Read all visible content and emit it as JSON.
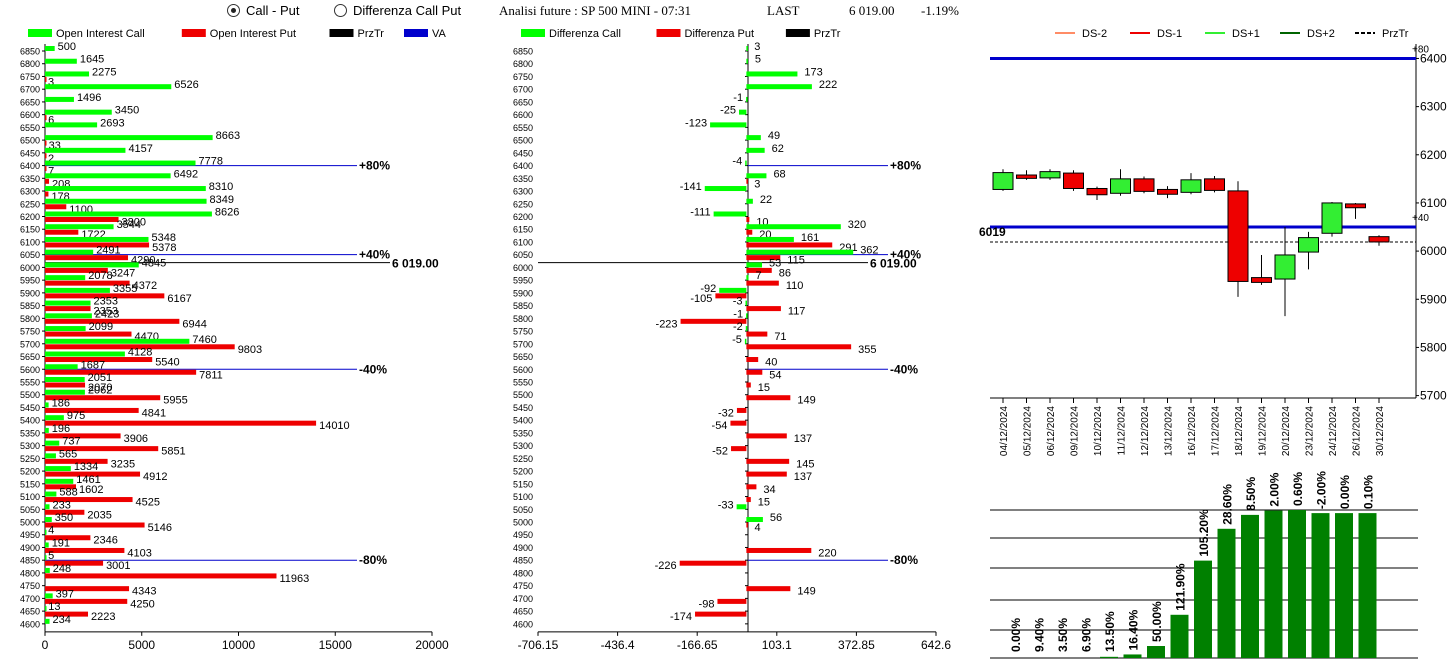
{
  "header": {
    "radio_call_put": "Call - Put",
    "radio_diff": "Differenza Call Put",
    "title": "Analisi future : SP 500 MINI - 07:31",
    "last_label": "LAST",
    "last_value": "6 019.00",
    "change": "-1.19%"
  },
  "chart_data": [
    {
      "type": "bar",
      "id": "open-interest",
      "legend": [
        "Open Interest Call",
        "Open Interest Put",
        "PrzTr",
        "VA"
      ],
      "colors": {
        "call": "#00ff00",
        "put": "#ee0000",
        "przTr": "#000000",
        "va": "#0000cc"
      },
      "categories": [
        6850,
        6800,
        6750,
        6700,
        6650,
        6600,
        6550,
        6500,
        6450,
        6400,
        6350,
        6300,
        6250,
        6200,
        6150,
        6100,
        6050,
        6000,
        5950,
        5900,
        5850,
        5800,
        5750,
        5700,
        5650,
        5600,
        5550,
        5500,
        5450,
        5400,
        5350,
        5300,
        5250,
        5200,
        5150,
        5100,
        5050,
        5000,
        4950,
        4900,
        4850,
        4800,
        4750,
        4700,
        4650,
        4600
      ],
      "series": [
        {
          "name": "Open Interest Call",
          "values": [
            500,
            1645,
            2275,
            6526,
            1496,
            3450,
            2693,
            8663,
            4157,
            7778,
            6492,
            8310,
            8349,
            8626,
            3544,
            5348,
            2491,
            4845,
            2078,
            3355,
            2353,
            2423,
            2099,
            7460,
            4128,
            1687,
            2051,
            2062,
            186,
            975,
            196,
            737,
            565,
            1334,
            1461,
            588,
            233,
            350,
            4,
            191,
            5,
            248,
            0,
            397,
            13,
            234
          ]
        },
        {
          "name": "Open Interest Put",
          "values": [
            0,
            0,
            3,
            0,
            0,
            6,
            0,
            33,
            2,
            7,
            208,
            178,
            1100,
            3800,
            1722,
            5378,
            4290,
            3247,
            4372,
            6167,
            2353,
            6944,
            4470,
            9803,
            5540,
            7811,
            2070,
            5955,
            4841,
            14010,
            3906,
            5851,
            3235,
            4912,
            1602,
            4525,
            2035,
            5146,
            2346,
            4103,
            3001,
            11963,
            4343,
            4250,
            2223,
            0
          ]
        }
      ],
      "xlim": [
        0,
        20000
      ],
      "xticks": [
        "0",
        "5000",
        "10000",
        "15000",
        "20000"
      ],
      "prztr": {
        "strike": 6019,
        "label": "6 019.00"
      },
      "va_lines": [
        {
          "strike": 6400,
          "label": "+80%"
        },
        {
          "strike": 6050,
          "label": "+40%"
        },
        {
          "strike": 5600,
          "label": "-40%"
        },
        {
          "strike": 4850,
          "label": "-80%"
        }
      ]
    },
    {
      "type": "bar",
      "id": "differenza",
      "legend": [
        "Differenza Call",
        "Differenza Put",
        "PrzTr"
      ],
      "colors": {
        "call": "#00ff00",
        "put": "#ee0000",
        "przTr": "#000000",
        "va": "#0000cc"
      },
      "categories": [
        6850,
        6800,
        6750,
        6700,
        6650,
        6600,
        6550,
        6500,
        6450,
        6400,
        6350,
        6300,
        6250,
        6200,
        6150,
        6100,
        6050,
        6000,
        5950,
        5900,
        5850,
        5800,
        5750,
        5700,
        5650,
        5600,
        5550,
        5500,
        5450,
        5400,
        5350,
        5300,
        5250,
        5200,
        5150,
        5100,
        5050,
        5000,
        4950,
        4900,
        4850,
        4800,
        4750,
        4700,
        4650,
        4600
      ],
      "call_values": [
        3,
        5,
        173,
        222,
        -1,
        -25,
        -123,
        49,
        62,
        -4,
        68,
        -141,
        22,
        -111,
        320,
        161,
        362,
        53,
        7,
        -92,
        -3,
        -1,
        -2,
        -5,
        0,
        0,
        0,
        0,
        0,
        0,
        0,
        0,
        0,
        0,
        0,
        0,
        -33,
        56,
        0,
        0,
        0,
        0,
        0,
        0,
        0,
        0
      ],
      "put_values": [
        0,
        0,
        0,
        0,
        0,
        0,
        0,
        0,
        0,
        0,
        3,
        0,
        0,
        10,
        20,
        291,
        115,
        86,
        110,
        -105,
        117,
        -223,
        71,
        355,
        40,
        54,
        15,
        149,
        -32,
        -54,
        137,
        -52,
        145,
        137,
        34,
        15,
        0,
        4,
        0,
        220,
        -226,
        0,
        149,
        -98,
        -174,
        0
      ],
      "xlim": [
        -706.15,
        642.6
      ],
      "xticks": [
        "-706.15",
        "-436.4",
        "-166.65",
        "103.1",
        "372.85",
        "642.6"
      ],
      "prztr": {
        "strike": 6019,
        "label": "6 019.00"
      },
      "va_lines": [
        {
          "strike": 6400,
          "label": "+80%"
        },
        {
          "strike": 6050,
          "label": "+40%"
        },
        {
          "strike": 5600,
          "label": "-40%"
        },
        {
          "strike": 4850,
          "label": "-80%"
        }
      ]
    },
    {
      "type": "candlestick",
      "id": "daily-candles",
      "legend": [
        {
          "name": "DS-2",
          "color": "#ff8c66",
          "dash": false
        },
        {
          "name": "DS-1",
          "color": "#ee0000",
          "dash": false
        },
        {
          "name": "DS+1",
          "color": "#33ee33",
          "dash": false
        },
        {
          "name": "DS+2",
          "color": "#006400",
          "dash": false
        },
        {
          "name": "PrzTr",
          "color": "#000000",
          "dash": true
        }
      ],
      "categories": [
        "04/12/2024",
        "05/12/2024",
        "06/12/2024",
        "09/12/2024",
        "10/12/2024",
        "11/12/2024",
        "12/12/2024",
        "13/12/2024",
        "16/12/2024",
        "17/12/2024",
        "18/12/2024",
        "19/12/2024",
        "20/12/2024",
        "23/12/2024",
        "24/12/2024",
        "26/12/2024",
        "30/12/2024"
      ],
      "candles": [
        {
          "open": 6128,
          "close": 6163,
          "high": 6170,
          "low": 6125
        },
        {
          "open": 6158,
          "close": 6151,
          "high": 6168,
          "low": 6148
        },
        {
          "open": 6152,
          "close": 6165,
          "high": 6170,
          "low": 6148
        },
        {
          "open": 6162,
          "close": 6130,
          "high": 6168,
          "low": 6125
        },
        {
          "open": 6130,
          "close": 6117,
          "high": 6134,
          "low": 6106
        },
        {
          "open": 6120,
          "close": 6150,
          "high": 6170,
          "low": 6115
        },
        {
          "open": 6150,
          "close": 6124,
          "high": 6155,
          "low": 6120
        },
        {
          "open": 6128,
          "close": 6118,
          "high": 6135,
          "low": 6110
        },
        {
          "open": 6122,
          "close": 6148,
          "high": 6162,
          "low": 6118
        },
        {
          "open": 6150,
          "close": 6126,
          "high": 6156,
          "low": 6122
        },
        {
          "open": 6125,
          "close": 5937,
          "high": 6145,
          "low": 5905
        },
        {
          "open": 5945,
          "close": 5935,
          "high": 5992,
          "low": 5930
        },
        {
          "open": 5942,
          "close": 5992,
          "high": 6050,
          "low": 5865
        },
        {
          "open": 5998,
          "close": 6028,
          "high": 6040,
          "low": 5962
        },
        {
          "open": 6037,
          "close": 6100,
          "high": 6102,
          "low": 6030
        },
        {
          "open": 6098,
          "close": 6090,
          "high": 6100,
          "low": 6067
        },
        {
          "open": 6030,
          "close": 6019,
          "high": 6033,
          "low": 6011
        }
      ],
      "ylim": [
        5695,
        6430
      ],
      "yticks": [
        6400,
        6300,
        6200,
        6100,
        6000,
        5900,
        5800,
        5700
      ],
      "hlines": [
        {
          "value": 6400,
          "label": "+80"
        },
        {
          "value": 6050,
          "label": "+40"
        }
      ],
      "prztr": {
        "value": 6019,
        "label": "6019"
      }
    },
    {
      "type": "bar",
      "id": "percent-bars",
      "values": [
        0.0,
        9.4,
        3.5,
        6.9,
        13.5,
        16.4,
        50.0,
        121.9,
        105.2,
        28.6,
        8.5,
        2.0,
        0.6,
        -2.0,
        0.0,
        0.1
      ],
      "labels": [
        "0.00%",
        "9.40%",
        "3.50%",
        "6.90%",
        "13.50%",
        "16.40%",
        "50.00%",
        "121.90%",
        "105.20%",
        "28.60%",
        "8.50%",
        "2.00%",
        "0.60%",
        "-2.00%",
        "0.00%",
        "0.10%"
      ],
      "level": [
        0,
        0,
        0,
        0,
        0.008,
        0.024,
        0.081,
        0.292,
        0.658,
        0.873,
        0.967,
        0.996,
        1.0,
        0.979,
        0.979,
        0.979
      ]
    }
  ]
}
